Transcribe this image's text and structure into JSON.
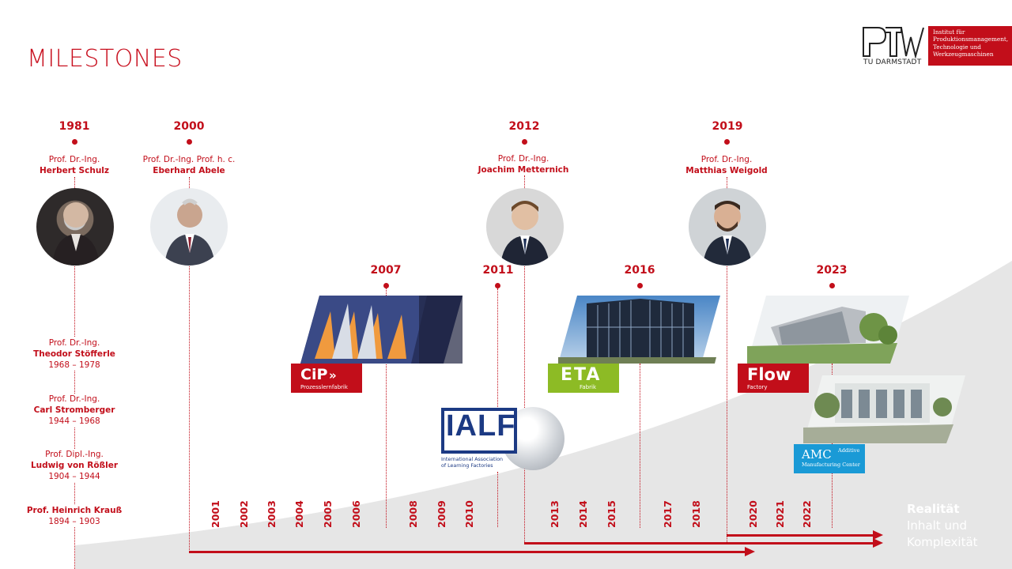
{
  "page": {
    "title": "MILESTONES"
  },
  "logo": {
    "mark": "PTW",
    "university": "TU DARMSTADT",
    "institute_lines": [
      "Institut für",
      "Produktionsmanagement,",
      "Technologie und",
      "Werkzeugmaschinen"
    ]
  },
  "milestones": [
    {
      "year": "1981",
      "title": "Prof. Dr.-Ing.",
      "name": "Herbert Schulz"
    },
    {
      "year": "2000",
      "title": "Prof. Dr.-Ing. Prof. h. c.",
      "name": "Eberhard Abele"
    },
    {
      "year": "2012",
      "title": "Prof. Dr.-Ing.",
      "name": "Joachim Metternich"
    },
    {
      "year": "2019",
      "title": "Prof. Dr.-Ing.",
      "name": "Matthias Weigold"
    }
  ],
  "history": [
    {
      "title": "Prof. Dr.-Ing.",
      "name": "Theodor Stöfferle",
      "years": "1968 – 1978"
    },
    {
      "title": "Prof. Dr.-Ing.",
      "name": "Carl Stromberger",
      "years": "1944 – 1968"
    },
    {
      "title": "Prof. Dipl.-Ing.",
      "name": "Ludwig von Rößler",
      "years": "1904 – 1944"
    },
    {
      "title": "",
      "name": "Prof. Heinrich Krauß",
      "years": "1894 – 1903"
    }
  ],
  "facilities": [
    {
      "year": "2007",
      "logo": "CiP",
      "subtitle": "Prozesslernfabrik"
    },
    {
      "year": "2011",
      "logo": "IALF",
      "subtitle_lines": [
        "International Association",
        "of Learning Factories"
      ]
    },
    {
      "year": "2016",
      "logo": "ETA",
      "subtitle": "Fabrik"
    },
    {
      "year": "2023",
      "logo": "Flow",
      "subtitle": "Factory"
    },
    {
      "logo": "AMC",
      "subtitle_lines": [
        "Additive",
        "Manufacturing Center"
      ]
    }
  ],
  "timeline_years": [
    "2001",
    "2002",
    "2003",
    "2004",
    "2005",
    "2006",
    "2008",
    "2009",
    "2010",
    "2013",
    "2014",
    "2015",
    "2017",
    "2018",
    "2020",
    "2021",
    "2022"
  ],
  "reality": {
    "line1": "Realität",
    "line2": "Inhalt und",
    "line3": "Komplexität"
  },
  "colors": {
    "accent": "#c20e1a",
    "eta_green": "#8dbb25",
    "amc_blue": "#1a9ad6",
    "wedge_gray": "#e6e6e6"
  }
}
